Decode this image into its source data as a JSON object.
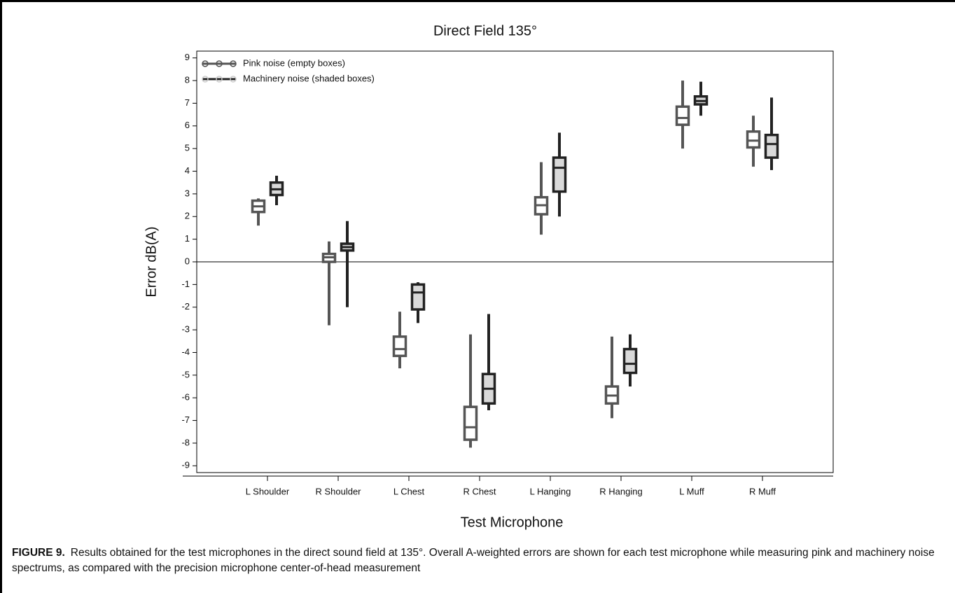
{
  "chart_data": {
    "type": "box",
    "title": "Direct Field 135°",
    "y_label": "Error dB(A)",
    "x_label": "Test Microphone",
    "categories": [
      "L Shoulder",
      "R Shoulder",
      "L Chest",
      "R Chest",
      "L Hanging",
      "R Hanging",
      "L Muff",
      "R Muff"
    ],
    "series": [
      {
        "name": "Pink noise (empty boxes)",
        "color": "#555555",
        "fill": "#ffffff",
        "low": [
          1.6,
          -2.8,
          -4.7,
          -8.2,
          1.2,
          -6.9,
          5.0,
          4.2
        ],
        "q1": [
          2.2,
          0.0,
          -4.15,
          -7.85,
          2.1,
          -6.25,
          6.05,
          5.05
        ],
        "median": [
          2.45,
          0.2,
          -3.85,
          -7.3,
          2.5,
          -5.9,
          6.35,
          5.35
        ],
        "q3": [
          2.7,
          0.35,
          -3.3,
          -6.4,
          2.85,
          -5.5,
          6.85,
          5.75
        ],
        "high": [
          2.8,
          0.9,
          -2.2,
          -3.2,
          4.4,
          -3.3,
          8.0,
          6.45
        ]
      },
      {
        "name": "Machinery noise (shaded boxes)",
        "color": "#222222",
        "fill": "#d9d9d9",
        "low": [
          2.5,
          -2.0,
          -2.7,
          -6.55,
          2.0,
          -5.5,
          6.45,
          4.05
        ],
        "q1": [
          2.95,
          0.5,
          -2.1,
          -6.25,
          3.1,
          -4.9,
          6.95,
          4.6
        ],
        "median": [
          3.2,
          0.65,
          -1.35,
          -5.6,
          4.15,
          -4.5,
          7.1,
          5.2
        ],
        "q3": [
          3.5,
          0.8,
          -1.0,
          -4.95,
          4.6,
          -3.85,
          7.3,
          5.6
        ],
        "high": [
          3.8,
          1.8,
          -0.9,
          -2.3,
          5.7,
          -3.2,
          7.95,
          7.25
        ]
      }
    ],
    "ylim": [
      -9.3,
      9.3
    ],
    "yticks": [
      -9,
      -8,
      -7,
      -6,
      -5,
      -4,
      -3,
      -2,
      -1,
      0,
      1,
      2,
      3,
      4,
      5,
      6,
      7,
      8,
      9
    ],
    "reference_line": 0,
    "legend": "top-left",
    "caption_label": "FIGURE 9.",
    "caption": "Results obtained for the test microphones in the direct sound field at 135°. Overall A-weighted errors are shown for each test microphone while measuring pink and machinery noise spectrums, as compared with the precision microphone center-of-head measurement"
  }
}
